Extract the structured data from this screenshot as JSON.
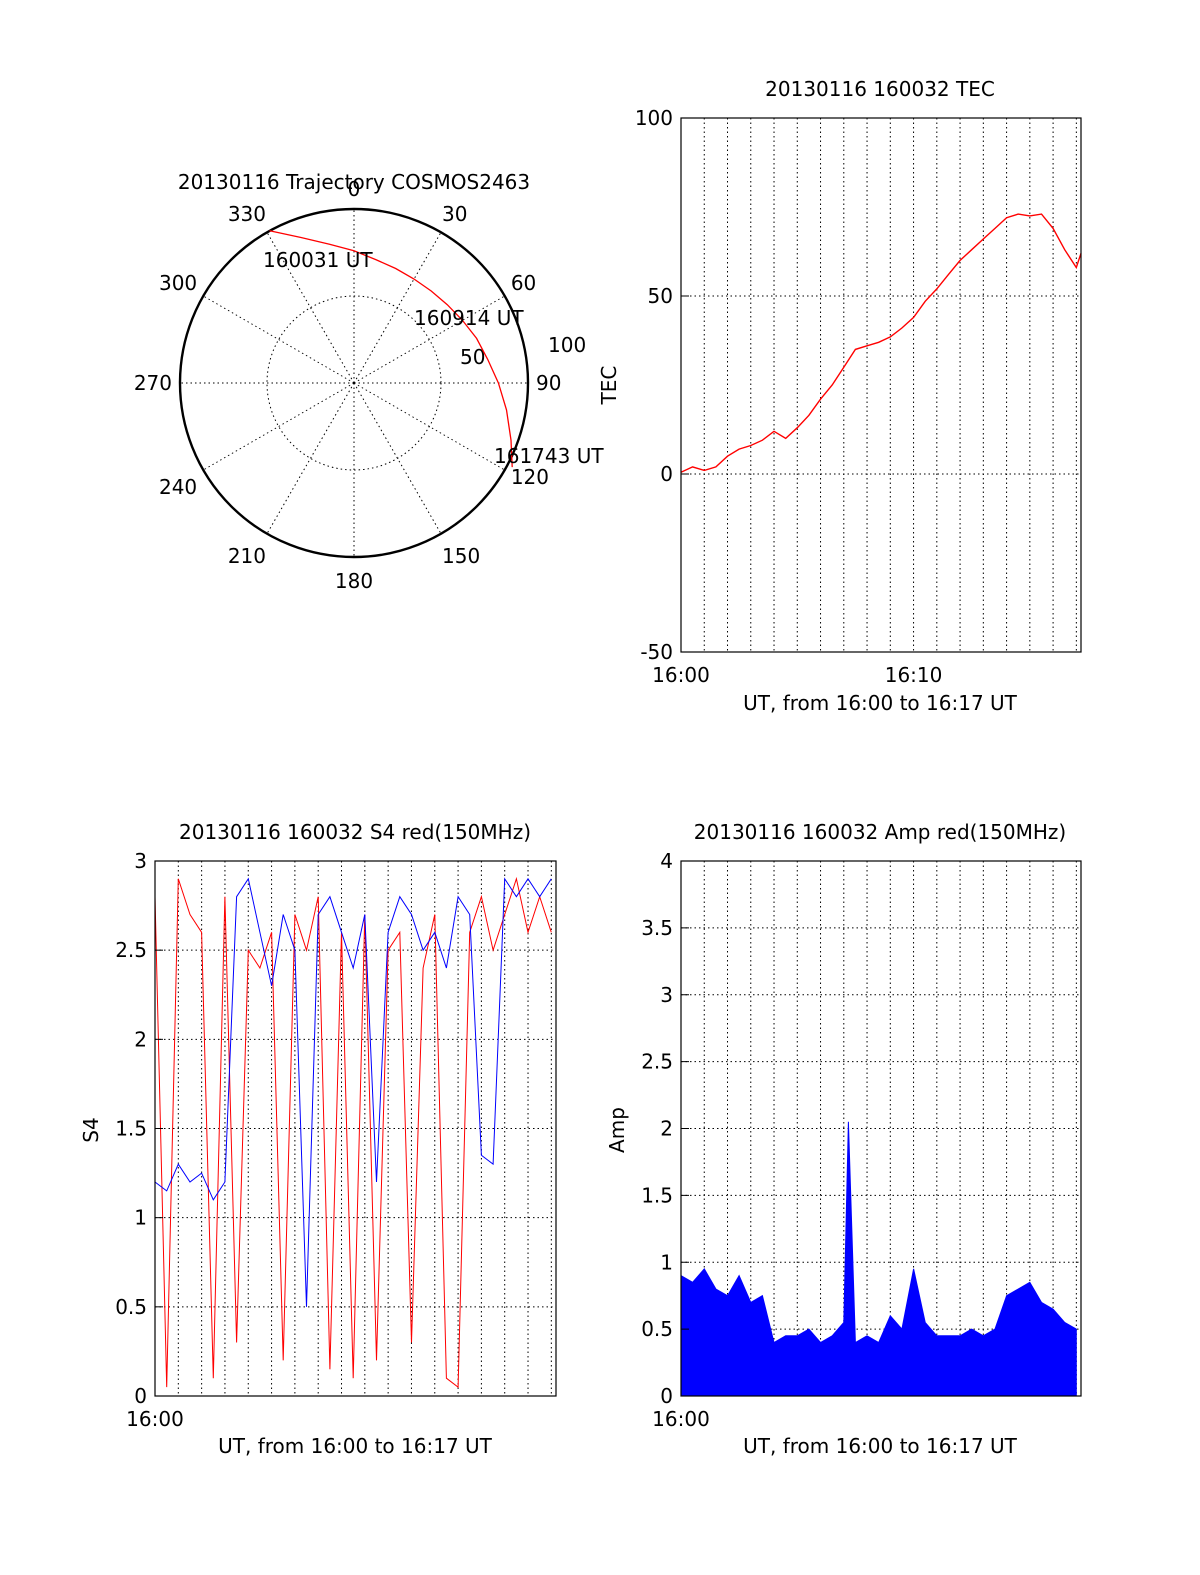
{
  "polar": {
    "title": "20130116 Trajectory COSMOS2463",
    "azimuth_labels": [
      "0",
      "30",
      "60",
      "90",
      "120",
      "150",
      "180",
      "210",
      "240",
      "270",
      "300",
      "330"
    ],
    "radial_labels": [
      "50",
      "100"
    ],
    "start_label": "160031 UT",
    "mid_label": "160914 UT",
    "end_label": "161743 UT",
    "trace_color": "#ff0000"
  },
  "chart_data": [
    {
      "type": "polar",
      "title": "20130116 Trajectory COSMOS2463",
      "azimuth_ticks": [
        0,
        30,
        60,
        90,
        120,
        150,
        180,
        210,
        240,
        270,
        300,
        330
      ],
      "radial_ticks": [
        50,
        100
      ],
      "series": [
        {
          "azimuth_deg": [
            331,
            340,
            350,
            0,
            10,
            20,
            30,
            40,
            50,
            60,
            70,
            80,
            90,
            100,
            110,
            118
          ],
          "zenith": [
            100,
            89,
            81,
            76,
            72,
            70,
            69,
            69,
            70,
            72,
            75,
            78,
            83,
            89,
            96,
            103
          ],
          "color": "#ff0000"
        }
      ],
      "annotations": [
        {
          "text": "160031 UT",
          "azimuth_deg": 331,
          "zenith": 100
        },
        {
          "text": "160914 UT",
          "azimuth_deg": 57,
          "zenith": 71
        },
        {
          "text": "161743 UT",
          "azimuth_deg": 118,
          "zenith": 103
        }
      ]
    },
    {
      "type": "line",
      "title": "20130116 160032 TEC",
      "xlabel": "UT, from 16:00 to 16:17 UT",
      "ylabel": "TEC",
      "x_unit": "minutes after 16:00 UT",
      "xlim": [
        0,
        17.2
      ],
      "ylim": [
        -50,
        100
      ],
      "xtick_labels": [
        {
          "x": 0,
          "label": "16:00"
        },
        {
          "x": 10,
          "label": "16:10"
        }
      ],
      "ytick_labels": [
        "100",
        "50",
        "0",
        "-50"
      ],
      "yticks": [
        100,
        50,
        0,
        -50
      ],
      "grid": true,
      "series": [
        {
          "color": "#ff0000",
          "x": [
            0,
            0.5,
            1,
            1.5,
            2,
            2.5,
            3,
            3.5,
            4,
            4.5,
            5,
            5.5,
            6,
            6.5,
            7,
            7.5,
            8,
            8.5,
            9,
            9.5,
            10,
            10.5,
            11,
            11.5,
            12,
            12.5,
            13,
            13.5,
            14,
            14.5,
            15,
            15.5,
            16,
            16.5,
            17,
            17.2
          ],
          "y": [
            0.5,
            2,
            1,
            2,
            5,
            7,
            8,
            9.5,
            12,
            10,
            13,
            16.5,
            21,
            25,
            30,
            35,
            36,
            37,
            38.5,
            41,
            44,
            48.5,
            52,
            56,
            60,
            63,
            66,
            69,
            72,
            73,
            72.5,
            73,
            69,
            63,
            58,
            62
          ]
        }
      ]
    },
    {
      "type": "line",
      "title": "20130116 160032 S4 red(150MHz)",
      "xlabel": "UT, from 16:00 to 16:17 UT",
      "ylabel": "S4",
      "x_unit": "minutes after 16:00 UT",
      "xlim": [
        0,
        17.2
      ],
      "ylim": [
        0,
        3
      ],
      "xtick_labels": [
        {
          "x": 0,
          "label": "16:00"
        }
      ],
      "ytick_labels": [
        "3",
        "2.5",
        "2",
        "1.5",
        "1",
        "0.5",
        "0"
      ],
      "yticks": [
        3,
        2.5,
        2,
        1.5,
        1,
        0.5,
        0
      ],
      "grid": true,
      "series": [
        {
          "color": "#ff0000",
          "x": [
            0,
            0.5,
            1,
            1.5,
            2,
            2.5,
            3,
            3.5,
            4,
            4.5,
            5,
            5.5,
            6,
            6.5,
            7,
            7.5,
            8,
            8.5,
            9,
            9.5,
            10,
            10.5,
            11,
            11.5,
            12,
            12.5,
            13,
            13.5,
            14,
            14.5,
            15,
            15.5,
            16,
            16.5,
            17
          ],
          "y": [
            2.8,
            0.05,
            2.9,
            2.7,
            2.6,
            0.1,
            2.8,
            0.3,
            2.5,
            2.4,
            2.6,
            0.2,
            2.7,
            2.5,
            2.8,
            0.15,
            2.6,
            0.1,
            2.7,
            0.2,
            2.5,
            2.6,
            0.3,
            2.4,
            2.7,
            0.1,
            0.05,
            2.6,
            2.8,
            2.5,
            2.7,
            2.9,
            2.6,
            2.8,
            2.6
          ]
        },
        {
          "color": "#0000ff",
          "x": [
            0,
            0.5,
            1,
            1.5,
            2,
            2.5,
            3,
            3.5,
            4,
            4.5,
            5,
            5.5,
            6,
            6.5,
            7,
            7.5,
            8,
            8.5,
            9,
            9.5,
            10,
            10.5,
            11,
            11.5,
            12,
            12.5,
            13,
            13.5,
            14,
            14.5,
            15,
            15.5,
            16,
            16.5,
            17
          ],
          "y": [
            1.2,
            1.15,
            1.3,
            1.2,
            1.25,
            1.1,
            1.2,
            2.8,
            2.9,
            2.6,
            2.3,
            2.7,
            2.5,
            0.5,
            2.7,
            2.8,
            2.6,
            2.4,
            2.7,
            1.2,
            2.6,
            2.8,
            2.7,
            2.5,
            2.6,
            2.4,
            2.8,
            2.7,
            1.35,
            1.3,
            2.9,
            2.8,
            2.9,
            2.8,
            2.9
          ]
        }
      ]
    },
    {
      "type": "area",
      "title": "20130116 160032 Amp red(150MHz)",
      "xlabel": "UT, from 16:00 to 16:17 UT",
      "ylabel": "Amp",
      "x_unit": "minutes after 16:00 UT",
      "xlim": [
        0,
        17.2
      ],
      "ylim": [
        0,
        4
      ],
      "xtick_labels": [
        {
          "x": 0,
          "label": "16:00"
        }
      ],
      "ytick_labels": [
        "4",
        "3.5",
        "3",
        "2.5",
        "2",
        "1.5",
        "1",
        "0.5",
        "0"
      ],
      "yticks": [
        4,
        3.5,
        3,
        2.5,
        2,
        1.5,
        1,
        0.5,
        0
      ],
      "grid": true,
      "series": [
        {
          "color": "#0000ff",
          "x": [
            0,
            0.5,
            1,
            1.5,
            2,
            2.5,
            3,
            3.5,
            4,
            4.5,
            5,
            5.5,
            6,
            6.5,
            7,
            7.2,
            7.5,
            8,
            8.5,
            9,
            9.5,
            10,
            10.5,
            11,
            11.5,
            12,
            12.5,
            13,
            13.5,
            14,
            14.5,
            15,
            15.5,
            16,
            16.5,
            17
          ],
          "y": [
            0.9,
            0.85,
            0.95,
            0.8,
            0.75,
            0.9,
            0.7,
            0.75,
            0.4,
            0.45,
            0.45,
            0.5,
            0.4,
            0.45,
            0.55,
            2.05,
            0.4,
            0.45,
            0.4,
            0.6,
            0.5,
            0.95,
            0.55,
            0.45,
            0.45,
            0.45,
            0.5,
            0.45,
            0.5,
            0.75,
            0.8,
            0.85,
            0.7,
            0.65,
            0.55,
            0.5
          ]
        }
      ]
    }
  ]
}
